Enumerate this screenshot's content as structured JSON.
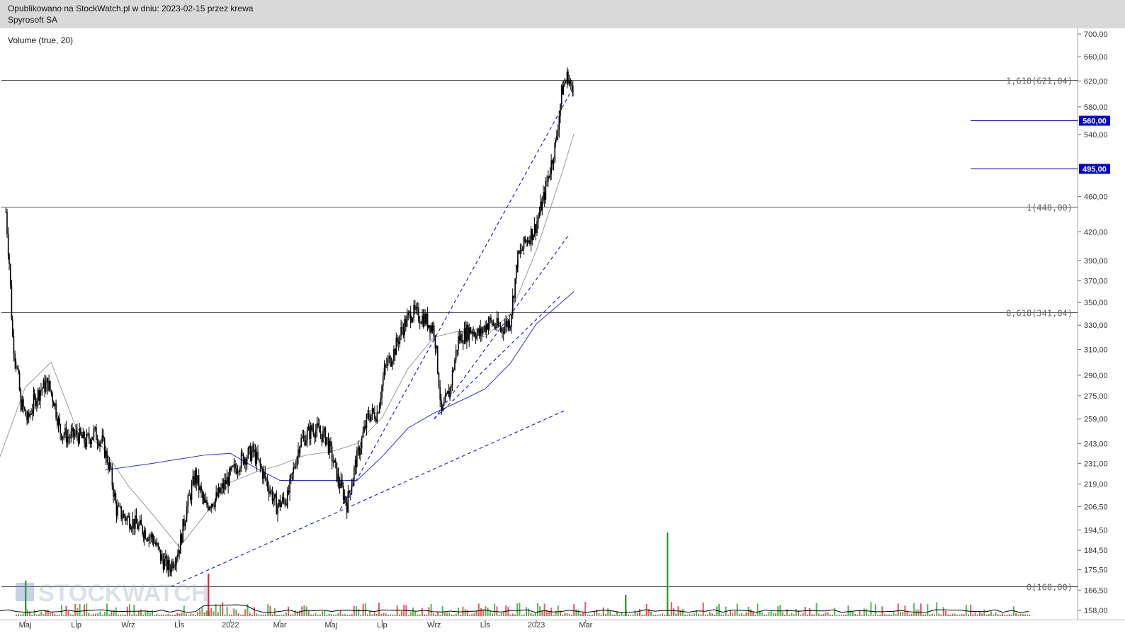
{
  "header": {
    "published": "Opublikowano na StockWatch.pl w dniu: 2023-02-15 przez krewa",
    "instrument": "Spyrosoft SA"
  },
  "indicator_label": "Volume (true, 20)",
  "watermark": "STOCKWATCH",
  "colors": {
    "candle": "#000000",
    "fib_line": "#555555",
    "trend_line": "#2222cc",
    "ma_long": "#3333bb",
    "ma_short": "#999999",
    "level_line": "#0000aa",
    "vol_up": "#2ca02c",
    "vol_down": "#e03030",
    "vol_avg": "#000000"
  },
  "chart_data": {
    "type": "line",
    "title": "Spyrosoft SA",
    "scale": "log",
    "y_ticks": [
      "700,00",
      "660,00",
      "620,00",
      "580,00",
      "540,00",
      "495,00",
      "460,00",
      "420,00",
      "390,00",
      "370,00",
      "350,00",
      "330,00",
      "310,00",
      "290,00",
      "275,00",
      "259,00",
      "243,00",
      "231,00",
      "219,00",
      "206,50",
      "194,50",
      "184,50",
      "175,50",
      "166,50",
      "158,00"
    ],
    "x_ticks": [
      "Maj",
      "Lip",
      "Wrz",
      "Lis",
      "2022",
      "Mar",
      "Maj",
      "Lip",
      "Wrz",
      "Lis",
      "2023",
      "Mar"
    ],
    "highlighted_levels": [
      {
        "value": 560,
        "label": "560,00"
      },
      {
        "value": 495,
        "label": "495,00"
      }
    ],
    "fib_levels": [
      {
        "ratio": "1,618",
        "value": 621.04,
        "label": "1,618(621,04)"
      },
      {
        "ratio": "1",
        "value": 448,
        "label": "1(448,00)"
      },
      {
        "ratio": "0,618",
        "value": 341.04,
        "label": "0,618(341,04)"
      },
      {
        "ratio": "0",
        "value": 168,
        "label": "0(168,00)"
      }
    ],
    "price_series": [
      [
        "2021-04-08",
        442
      ],
      [
        "2021-04-12",
        388
      ],
      [
        "2021-04-16",
        320
      ],
      [
        "2021-04-20",
        300
      ],
      [
        "2021-04-26",
        270
      ],
      [
        "2021-05-04",
        258
      ],
      [
        "2021-05-12",
        272
      ],
      [
        "2021-05-20",
        280
      ],
      [
        "2021-05-28",
        284
      ],
      [
        "2021-06-04",
        272
      ],
      [
        "2021-06-12",
        251
      ],
      [
        "2021-06-22",
        247
      ],
      [
        "2021-07-02",
        249
      ],
      [
        "2021-07-12",
        244
      ],
      [
        "2021-07-22",
        250
      ],
      [
        "2021-08-01",
        244
      ],
      [
        "2021-08-10",
        228
      ],
      [
        "2021-08-18",
        205
      ],
      [
        "2021-08-25",
        202
      ],
      [
        "2021-09-05",
        199
      ],
      [
        "2021-09-20",
        194
      ],
      [
        "2021-10-01",
        190
      ],
      [
        "2021-10-10",
        181
      ],
      [
        "2021-10-20",
        176
      ],
      [
        "2021-11-01",
        186
      ],
      [
        "2021-11-10",
        206
      ],
      [
        "2021-11-20",
        224
      ],
      [
        "2021-12-01",
        207
      ],
      [
        "2021-12-15",
        211
      ],
      [
        "2022-01-01",
        224
      ],
      [
        "2022-01-15",
        234
      ],
      [
        "2022-01-28",
        238
      ],
      [
        "2022-02-10",
        224
      ],
      [
        "2022-02-25",
        207
      ],
      [
        "2022-03-10",
        211
      ],
      [
        "2022-03-25",
        244
      ],
      [
        "2022-04-10",
        253
      ],
      [
        "2022-04-25",
        247
      ],
      [
        "2022-05-10",
        221
      ],
      [
        "2022-05-20",
        208
      ],
      [
        "2022-06-01",
        234
      ],
      [
        "2022-06-15",
        262
      ],
      [
        "2022-06-25",
        263
      ],
      [
        "2022-07-05",
        296
      ],
      [
        "2022-07-15",
        308
      ],
      [
        "2022-07-25",
        327
      ],
      [
        "2022-08-05",
        341
      ],
      [
        "2022-08-20",
        336
      ],
      [
        "2022-09-01",
        327
      ],
      [
        "2022-09-10",
        262
      ],
      [
        "2022-09-20",
        280
      ],
      [
        "2022-09-30",
        318
      ],
      [
        "2022-10-15",
        327
      ],
      [
        "2022-10-25",
        322
      ],
      [
        "2022-11-05",
        333
      ],
      [
        "2022-11-20",
        327
      ],
      [
        "2022-12-01",
        334
      ],
      [
        "2022-12-10",
        392
      ],
      [
        "2022-12-20",
        411
      ],
      [
        "2022-12-30",
        423
      ],
      [
        "2023-01-08",
        451
      ],
      [
        "2023-01-16",
        488
      ],
      [
        "2023-01-24",
        526
      ],
      [
        "2023-02-01",
        608
      ],
      [
        "2023-02-08",
        629
      ],
      [
        "2023-02-15",
        590
      ]
    ],
    "ma_short": [
      [
        "2021-04-01",
        235
      ],
      [
        "2021-05-01",
        281
      ],
      [
        "2021-06-01",
        300
      ],
      [
        "2021-07-01",
        253
      ],
      [
        "2021-08-01",
        241
      ],
      [
        "2021-09-01",
        218
      ],
      [
        "2021-10-01",
        202
      ],
      [
        "2021-11-01",
        186
      ],
      [
        "2021-12-01",
        202
      ],
      [
        "2022-01-01",
        220
      ],
      [
        "2022-02-01",
        226
      ],
      [
        "2022-03-01",
        230
      ],
      [
        "2022-04-01",
        236
      ],
      [
        "2022-05-01",
        238
      ],
      [
        "2022-06-01",
        243
      ],
      [
        "2022-07-01",
        260
      ],
      [
        "2022-08-01",
        295
      ],
      [
        "2022-09-01",
        320
      ],
      [
        "2022-10-01",
        325
      ],
      [
        "2022-11-01",
        320
      ],
      [
        "2022-12-01",
        340
      ],
      [
        "2023-01-01",
        400
      ],
      [
        "2023-02-01",
        490
      ],
      [
        "2023-02-15",
        541
      ]
    ],
    "ma_long": [
      [
        "2021-08-05",
        227
      ],
      [
        "2021-10-01",
        231
      ],
      [
        "2021-12-01",
        236
      ],
      [
        "2022-01-01",
        237
      ],
      [
        "2022-02-01",
        228
      ],
      [
        "2022-03-01",
        221
      ],
      [
        "2022-05-01",
        221
      ],
      [
        "2022-06-01",
        221
      ],
      [
        "2022-07-01",
        235
      ],
      [
        "2022-08-01",
        253
      ],
      [
        "2022-09-01",
        263
      ],
      [
        "2022-10-01",
        271
      ],
      [
        "2022-11-01",
        280
      ],
      [
        "2022-12-01",
        299
      ],
      [
        "2023-01-01",
        331
      ],
      [
        "2023-02-15",
        360
      ]
    ],
    "trend_lines": [
      {
        "from": [
          "2021-10-22",
          168
        ],
        "to": [
          "2023-02-05",
          265
        ]
      },
      {
        "from": [
          "2022-05-12",
          205
        ],
        "to": [
          "2023-02-15",
          612
        ]
      },
      {
        "from": [
          "2022-09-01",
          259
        ],
        "to": [
          "2023-02-10",
          418
        ]
      },
      {
        "from": [
          "2022-09-01",
          259
        ],
        "to": [
          "2023-01-30",
          356
        ]
      }
    ],
    "volume": {
      "label": "Volume (true, 20)"
    }
  }
}
